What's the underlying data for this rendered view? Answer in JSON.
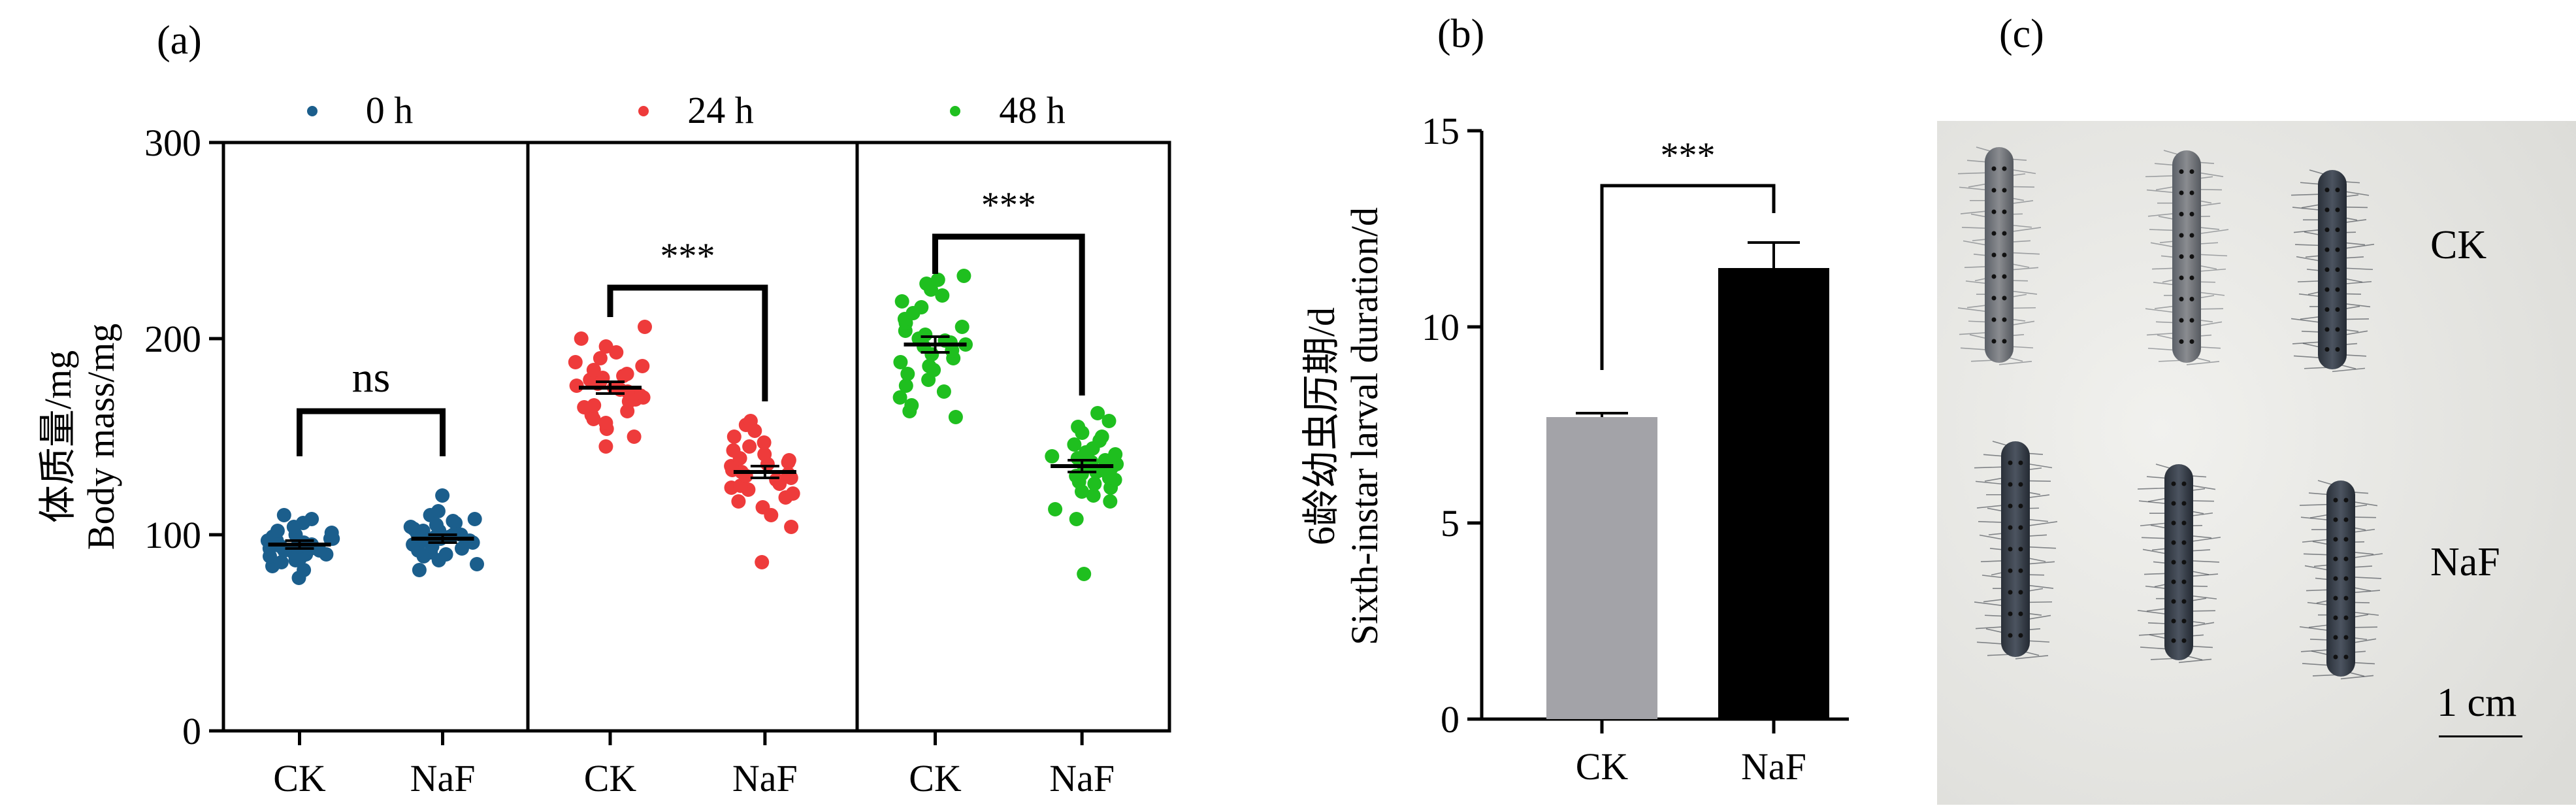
{
  "panels": {
    "a_label": "(a)",
    "b_label": "(b)",
    "c_label": "(c)"
  },
  "colors": {
    "h0": "#1b5e8c",
    "h24": "#ee3b3b",
    "h48": "#1fbf1f",
    "ck_bar": "#a3a3a8",
    "naf_bar": "#000000"
  },
  "chart_data": [
    {
      "type": "scatter",
      "panel": "a",
      "ylabel_cn": "体质量/mg",
      "ylabel_en": "Body mass/mg",
      "ylim": [
        0,
        300
      ],
      "yticks": [
        "0",
        "100",
        "200",
        "300"
      ],
      "groups": [
        "CK",
        "NaF"
      ],
      "legend_placement": "top",
      "series": [
        {
          "name": "0 h",
          "color_key": "h0",
          "significance": "ns",
          "CK": {
            "mean": 95,
            "sem": 2,
            "values": [
              78,
              82,
              84,
              86,
              87,
              88,
              89,
              90,
              90,
              91,
              92,
              92,
              93,
              93,
              94,
              94,
              95,
              95,
              96,
              96,
              97,
              97,
              98,
              98,
              99,
              100,
              101,
              102,
              104,
              106,
              108,
              110
            ]
          },
          "NaF": {
            "mean": 98,
            "sem": 2,
            "values": [
              82,
              85,
              87,
              89,
              90,
              91,
              92,
              93,
              94,
              95,
              95,
              96,
              97,
              97,
              98,
              98,
              99,
              99,
              100,
              100,
              101,
              102,
              102,
              103,
              104,
              105,
              106,
              107,
              108,
              110,
              112,
              120
            ]
          }
        },
        {
          "name": "24 h",
          "color_key": "h24",
          "significance": "***",
          "CK": {
            "mean": 175,
            "sem": 3,
            "values": [
              145,
              150,
              154,
              157,
              159,
              161,
              163,
              165,
              166,
              168,
              169,
              170,
              171,
              172,
              173,
              174,
              175,
              176,
              177,
              178,
              179,
              180,
              181,
              182,
              184,
              186,
              188,
              190,
              193,
              196,
              200,
              206
            ]
          },
          "NaF": {
            "mean": 132,
            "sem": 3,
            "values": [
              86,
              104,
              110,
              114,
              117,
              119,
              121,
              123,
              124,
              125,
              126,
              127,
              128,
              129,
              130,
              131,
              132,
              133,
              134,
              135,
              136,
              137,
              138,
              139,
              141,
              143,
              145,
              147,
              150,
              153,
              156,
              158
            ]
          }
        },
        {
          "name": "48 h",
          "color_key": "h48",
          "significance": "***",
          "CK": {
            "mean": 197,
            "sem": 4,
            "values": [
              160,
              163,
              166,
              170,
              173,
              176,
              179,
              182,
              184,
              186,
              188,
              190,
              192,
              194,
              196,
              197,
              198,
              199,
              200,
              202,
              204,
              206,
              208,
              210,
              213,
              216,
              219,
              222,
              225,
              228,
              230,
              232
            ]
          },
          "NaF": {
            "mean": 135,
            "sem": 3,
            "values": [
              80,
              108,
              113,
              117,
              120,
              122,
              124,
              126,
              127,
              128,
              129,
              130,
              131,
              132,
              133,
              134,
              135,
              136,
              137,
              138,
              139,
              140,
              141,
              142,
              144,
              146,
              148,
              150,
              152,
              155,
              158,
              162
            ]
          }
        }
      ]
    },
    {
      "type": "bar",
      "panel": "b",
      "categories": [
        "CK",
        "NaF"
      ],
      "values": [
        7.7,
        11.5
      ],
      "errors": [
        0.1,
        0.65
      ],
      "significance": "***",
      "ylabel_cn": "6龄幼虫历期/d",
      "ylabel_en": "Sixth-instar larval duration/d",
      "ylim": [
        0,
        15
      ],
      "yticks": [
        "0",
        "5",
        "10",
        "15"
      ]
    }
  ],
  "photo": {
    "row1_label": "CK",
    "row2_label": "NaF",
    "scale_label": "1 cm"
  }
}
